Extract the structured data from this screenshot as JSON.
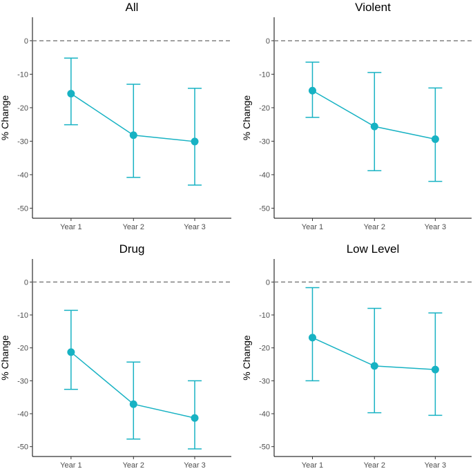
{
  "chart_data": [
    {
      "type": "line",
      "title": "All",
      "xlabel": "",
      "ylabel": "% Change",
      "categories": [
        "Year 1",
        "Year 2",
        "Year 3"
      ],
      "values": [
        -15.8,
        -28.2,
        -30.1
      ],
      "lower": [
        -25.1,
        -40.8,
        -43.1
      ],
      "upper": [
        -5.2,
        -13.0,
        -14.2
      ],
      "yticks": [
        0,
        -10,
        -20,
        -30,
        -40,
        -50
      ],
      "ylim": [
        -53,
        7
      ],
      "reference_line": 0
    },
    {
      "type": "line",
      "title": "Violent",
      "xlabel": "",
      "ylabel": "% Change",
      "categories": [
        "Year 1",
        "Year 2",
        "Year 3"
      ],
      "values": [
        -14.9,
        -25.6,
        -29.4
      ],
      "lower": [
        -22.9,
        -38.8,
        -42.0
      ],
      "upper": [
        -6.4,
        -9.5,
        -14.1
      ],
      "yticks": [
        0,
        -10,
        -20,
        -30,
        -40,
        -50
      ],
      "ylim": [
        -53,
        7
      ],
      "reference_line": 0
    },
    {
      "type": "line",
      "title": "Drug",
      "xlabel": "",
      "ylabel": "% Change",
      "categories": [
        "Year 1",
        "Year 2",
        "Year 3"
      ],
      "values": [
        -21.3,
        -37.1,
        -41.3
      ],
      "lower": [
        -32.6,
        -47.7,
        -50.7
      ],
      "upper": [
        -8.6,
        -24.3,
        -30.0
      ],
      "yticks": [
        0,
        -10,
        -20,
        -30,
        -40,
        -50
      ],
      "ylim": [
        -53,
        7
      ],
      "reference_line": 0
    },
    {
      "type": "line",
      "title": "Low Level",
      "xlabel": "",
      "ylabel": "% Change",
      "categories": [
        "Year 1",
        "Year 2",
        "Year 3"
      ],
      "values": [
        -16.9,
        -25.5,
        -26.6
      ],
      "lower": [
        -30.0,
        -39.7,
        -40.5
      ],
      "upper": [
        -1.7,
        -8.0,
        -9.4
      ],
      "yticks": [
        0,
        -10,
        -20,
        -30,
        -40,
        -50
      ],
      "ylim": [
        -53,
        7
      ],
      "reference_line": 0
    }
  ],
  "colors": {
    "series": "#17b2c3",
    "reference": "#808080",
    "axis": "#000000",
    "tick_text": "#4d4d4d"
  }
}
